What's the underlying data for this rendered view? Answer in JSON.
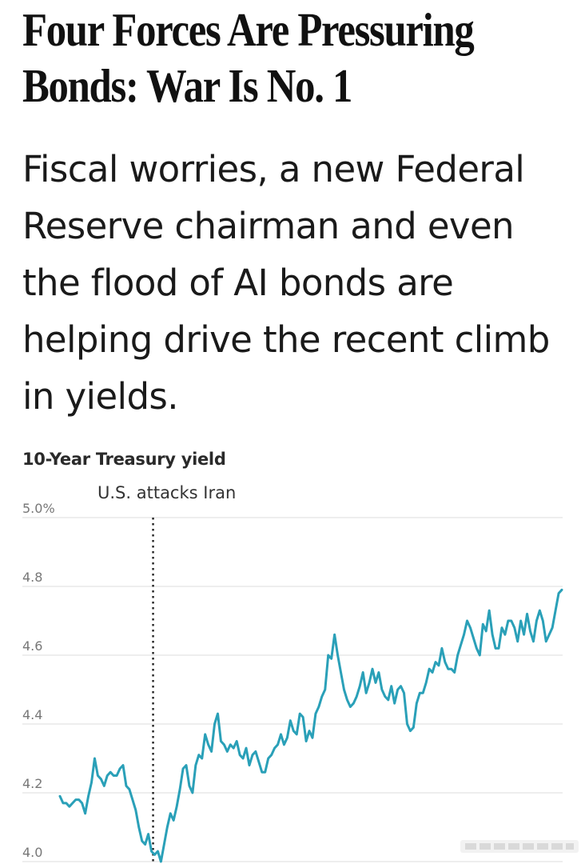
{
  "headline": "Four Forces Are Pressuring Bonds: War Is No. 1",
  "dek": "Fiscal worries, a new Federal Reserve chairman and even the flood of AI bonds are helping drive the recent climb in yields.",
  "chart_data": {
    "type": "line",
    "title": "10-Year Treasury yield",
    "xlabel": "",
    "ylabel": "",
    "ylim": [
      4.0,
      5.0
    ],
    "yticks": [
      5.0,
      4.8,
      4.6,
      4.4,
      4.2,
      4.0
    ],
    "ytick_labels": [
      "5.0%",
      "4.8",
      "4.6",
      "4.4",
      "4.2",
      "4.0"
    ],
    "grid": true,
    "line_color": "#2aa0b8",
    "annotation": {
      "label": "U.S. attacks Iran",
      "index": 29
    },
    "series": [
      {
        "values": [
          4.19,
          4.17,
          4.17,
          4.16,
          4.17,
          4.18,
          4.18,
          4.17,
          4.14,
          4.19,
          4.23,
          4.3,
          4.25,
          4.24,
          4.22,
          4.25,
          4.26,
          4.25,
          4.25,
          4.27,
          4.28,
          4.22,
          4.21,
          4.18,
          4.15,
          4.1,
          4.06,
          4.05,
          4.08,
          4.03,
          4.02,
          4.03,
          4.0,
          4.05,
          4.1,
          4.14,
          4.12,
          4.16,
          4.21,
          4.27,
          4.28,
          4.22,
          4.2,
          4.28,
          4.31,
          4.3,
          4.37,
          4.34,
          4.32,
          4.4,
          4.43,
          4.35,
          4.34,
          4.32,
          4.34,
          4.33,
          4.35,
          4.31,
          4.3,
          4.33,
          4.28,
          4.31,
          4.32,
          4.29,
          4.26,
          4.26,
          4.3,
          4.31,
          4.33,
          4.34,
          4.37,
          4.34,
          4.36,
          4.41,
          4.38,
          4.37,
          4.43,
          4.42,
          4.35,
          4.38,
          4.36,
          4.43,
          4.45,
          4.48,
          4.5,
          4.6,
          4.59,
          4.66,
          4.6,
          4.55,
          4.5,
          4.47,
          4.45,
          4.46,
          4.48,
          4.51,
          4.55,
          4.49,
          4.52,
          4.56,
          4.52,
          4.55,
          4.5,
          4.48,
          4.47,
          4.51,
          4.46,
          4.5,
          4.51,
          4.49,
          4.4,
          4.38,
          4.39,
          4.46,
          4.49,
          4.49,
          4.52,
          4.56,
          4.55,
          4.58,
          4.57,
          4.62,
          4.58,
          4.56,
          4.56,
          4.55,
          4.6,
          4.63,
          4.66,
          4.7,
          4.68,
          4.65,
          4.62,
          4.6,
          4.69,
          4.67,
          4.73,
          4.66,
          4.62,
          4.62,
          4.68,
          4.66,
          4.7,
          4.7,
          4.68,
          4.64,
          4.7,
          4.66,
          4.72,
          4.67,
          4.64,
          4.7,
          4.73,
          4.7,
          4.64,
          4.66,
          4.68,
          4.73,
          4.78,
          4.79
        ]
      }
    ]
  },
  "watermark": "@rkrgxmo cdot"
}
